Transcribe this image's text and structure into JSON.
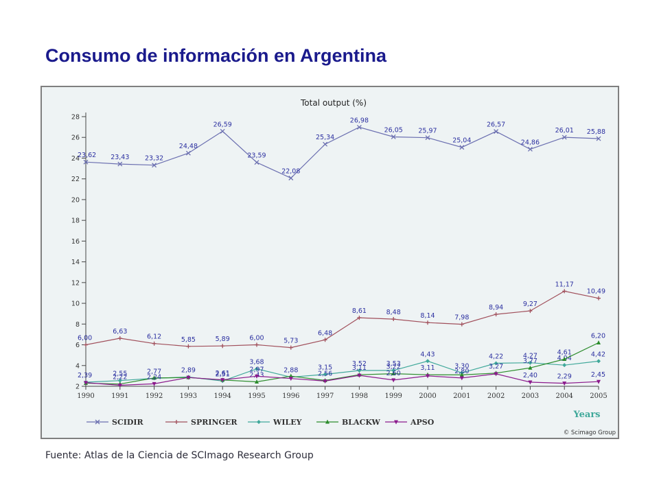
{
  "slide": {
    "title": "Consumo de información en Argentina",
    "source": "Fuente: Atlas de la Ciencia de SCImago Research Group"
  },
  "chart_data": {
    "type": "line",
    "title": "Total output (%)",
    "xlabel": "Years",
    "ylabel": "",
    "credit": "© Scimago Group",
    "x": [
      "1990",
      "1991",
      "1992",
      "1993",
      "1994",
      "1995",
      "1996",
      "1997",
      "1998",
      "1999",
      "2000",
      "2001",
      "2002",
      "2003",
      "2004",
      "2005"
    ],
    "ylim": [
      2,
      28
    ],
    "yticks": [
      2,
      4,
      6,
      8,
      10,
      12,
      14,
      16,
      18,
      20,
      22,
      24,
      26,
      28
    ],
    "grid": false,
    "legend_position": "bottom",
    "series": [
      {
        "name": "SCIDIR",
        "color": "#6b6fb0",
        "marker": "x",
        "values": [
          23.62,
          23.43,
          23.32,
          24.48,
          26.59,
          23.59,
          22.08,
          25.34,
          26.98,
          26.05,
          25.97,
          25.04,
          26.57,
          24.86,
          26.01,
          25.88
        ],
        "labels": [
          "23,62",
          "23,43",
          "23,32",
          "24,48",
          "26,59",
          "23,59",
          "22,08",
          "25,34",
          "26,98",
          "26,05",
          "25,97",
          "25,04",
          "26,57",
          "24,86",
          "26,01",
          "25,88"
        ]
      },
      {
        "name": "SPRINGER",
        "color": "#a04e5a",
        "marker": "plus",
        "values": [
          6.0,
          6.63,
          6.12,
          5.85,
          5.89,
          6.0,
          5.73,
          6.48,
          8.61,
          8.48,
          8.14,
          7.98,
          8.94,
          9.27,
          11.17,
          10.49
        ],
        "labels": [
          "6,00",
          "6,63",
          "6,12",
          "5,85",
          "5,89",
          "6,00",
          "5,73",
          "6,48",
          "8,61",
          "8,48",
          "8,14",
          "7,98",
          "8,94",
          "9,27",
          "11,17",
          "10,49"
        ]
      },
      {
        "name": "WILEY",
        "color": "#3fa89a",
        "marker": "diamond",
        "values": [
          2.39,
          2.55,
          2.77,
          2.89,
          2.51,
          3.68,
          2.88,
          3.15,
          3.52,
          3.53,
          4.43,
          3.3,
          4.22,
          4.27,
          4.04,
          4.42
        ],
        "labels": [
          "2,39",
          "2,55",
          "2,77",
          "2,89",
          "2,51",
          "3,68",
          "2,88",
          "3,15",
          "3,52",
          "3,53",
          "4,43",
          "3,30",
          "4,22",
          "4,27",
          "4,04",
          "4,42"
        ]
      },
      {
        "name": "BLACKW",
        "color": "#2c8c2c",
        "marker": "triangle",
        "values": [
          2.3,
          2.22,
          2.8,
          2.85,
          2.61,
          2.43,
          2.98,
          2.56,
          3.11,
          3.22,
          3.11,
          3.1,
          3.27,
          3.77,
          4.61,
          6.2
        ],
        "labels": [
          "",
          "2,22",
          "",
          "",
          "2,61",
          "2,43",
          "",
          "2,56",
          "3,11",
          "3,22",
          "3,11",
          "",
          "3,27",
          "3,77",
          "4,61",
          "6,20"
        ]
      },
      {
        "name": "APSO",
        "color": "#8b1a8c",
        "marker": "triangle-down",
        "values": [
          2.35,
          2.1,
          2.24,
          2.85,
          2.62,
          2.97,
          2.75,
          2.5,
          3.05,
          2.6,
          3.0,
          2.8,
          3.2,
          2.4,
          2.29,
          2.45
        ],
        "labels": [
          "",
          "",
          "2,24",
          "",
          "",
          "2,97",
          "",
          "",
          "",
          "2,60",
          "",
          "2,80",
          "",
          "2,40",
          "2,29",
          "2,45"
        ]
      }
    ]
  }
}
